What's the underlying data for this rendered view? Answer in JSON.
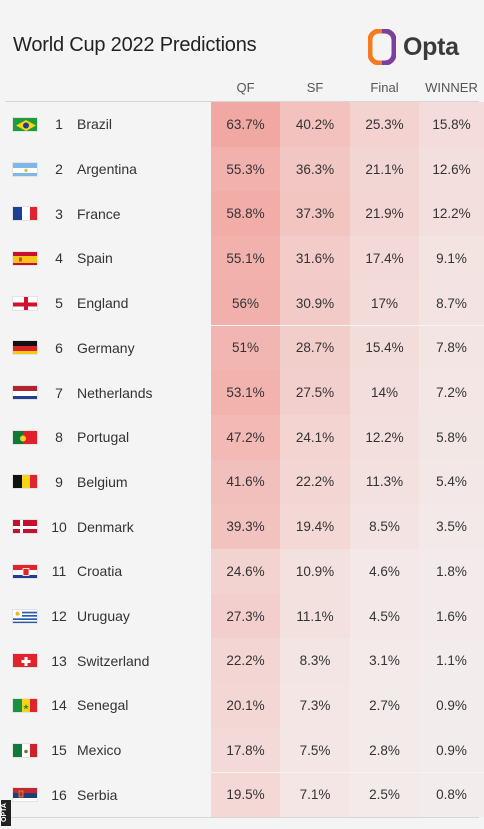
{
  "title": "World Cup 2022 Predictions",
  "logo_text": "Opta",
  "credit": "OPTA",
  "columns": [
    "QF",
    "SF",
    "Final",
    "WINNER"
  ],
  "colors": {
    "heat": "#f07c74",
    "logo_orange": "#f47b20",
    "logo_purple": "#7b3fa0"
  },
  "teams": [
    {
      "rank": "1",
      "name": "Brazil",
      "flag": "brazil-flag-icon",
      "qf": "63.7%",
      "sf": "40.2%",
      "final": "25.3%",
      "winner": "15.8%"
    },
    {
      "rank": "2",
      "name": "Argentina",
      "flag": "argentina-flag-icon",
      "qf": "55.3%",
      "sf": "36.3%",
      "final": "21.1%",
      "winner": "12.6%"
    },
    {
      "rank": "3",
      "name": "France",
      "flag": "france-flag-icon",
      "qf": "58.8%",
      "sf": "37.3%",
      "final": "21.9%",
      "winner": "12.2%"
    },
    {
      "rank": "4",
      "name": "Spain",
      "flag": "spain-flag-icon",
      "qf": "55.1%",
      "sf": "31.6%",
      "final": "17.4%",
      "winner": "9.1%"
    },
    {
      "rank": "5",
      "name": "England",
      "flag": "england-flag-icon",
      "qf": "56%",
      "sf": "30.9%",
      "final": "17%",
      "winner": "8.7%"
    },
    {
      "rank": "6",
      "name": "Germany",
      "flag": "germany-flag-icon",
      "qf": "51%",
      "sf": "28.7%",
      "final": "15.4%",
      "winner": "7.8%"
    },
    {
      "rank": "7",
      "name": "Netherlands",
      "flag": "netherlands-flag-icon",
      "qf": "53.1%",
      "sf": "27.5%",
      "final": "14%",
      "winner": "7.2%"
    },
    {
      "rank": "8",
      "name": "Portugal",
      "flag": "portugal-flag-icon",
      "qf": "47.2%",
      "sf": "24.1%",
      "final": "12.2%",
      "winner": "5.8%"
    },
    {
      "rank": "9",
      "name": "Belgium",
      "flag": "belgium-flag-icon",
      "qf": "41.6%",
      "sf": "22.2%",
      "final": "11.3%",
      "winner": "5.4%"
    },
    {
      "rank": "10",
      "name": "Denmark",
      "flag": "denmark-flag-icon",
      "qf": "39.3%",
      "sf": "19.4%",
      "final": "8.5%",
      "winner": "3.5%"
    },
    {
      "rank": "11",
      "name": "Croatia",
      "flag": "croatia-flag-icon",
      "qf": "24.6%",
      "sf": "10.9%",
      "final": "4.6%",
      "winner": "1.8%"
    },
    {
      "rank": "12",
      "name": "Uruguay",
      "flag": "uruguay-flag-icon",
      "qf": "27.3%",
      "sf": "11.1%",
      "final": "4.5%",
      "winner": "1.6%"
    },
    {
      "rank": "13",
      "name": "Switzerland",
      "flag": "switzerland-flag-icon",
      "qf": "22.2%",
      "sf": "8.3%",
      "final": "3.1%",
      "winner": "1.1%"
    },
    {
      "rank": "14",
      "name": "Senegal",
      "flag": "senegal-flag-icon",
      "qf": "20.1%",
      "sf": "7.3%",
      "final": "2.7%",
      "winner": "0.9%"
    },
    {
      "rank": "15",
      "name": "Mexico",
      "flag": "mexico-flag-icon",
      "qf": "17.8%",
      "sf": "7.5%",
      "final": "2.8%",
      "winner": "0.9%"
    },
    {
      "rank": "16",
      "name": "Serbia",
      "flag": "serbia-flag-icon",
      "qf": "19.5%",
      "sf": "7.1%",
      "final": "2.5%",
      "winner": "0.8%"
    }
  ]
}
